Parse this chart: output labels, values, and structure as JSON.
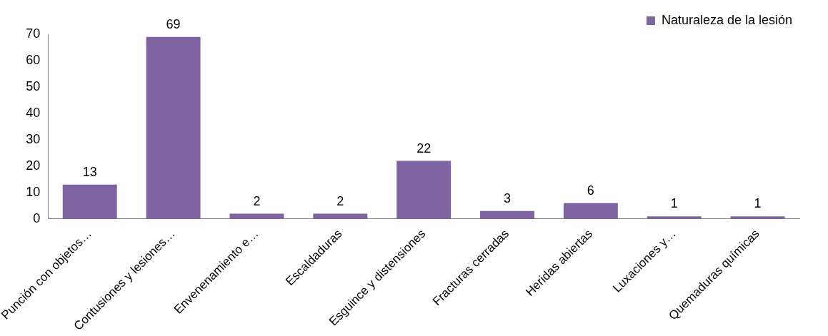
{
  "chart_data": {
    "type": "bar",
    "categories": [
      "Punción con objetos…",
      "Contusiones y lesiones…",
      "Envenenamiento e…",
      "Escaldaduras",
      "Esguince y distensiones",
      "Fracturas cerradas",
      "Heridas abiertas",
      "Luxaciones y…",
      "Quemaduras químicas"
    ],
    "series": [
      {
        "name": "Naturaleza de la lesión",
        "color": "#8064a2",
        "values": [
          13,
          69,
          2,
          2,
          22,
          3,
          6,
          1,
          1
        ]
      }
    ],
    "ylim": [
      0,
      70
    ],
    "yticks": [
      0,
      10,
      20,
      30,
      40,
      50,
      60,
      70
    ],
    "grid": false,
    "legend": "top right",
    "data_labels": true
  }
}
